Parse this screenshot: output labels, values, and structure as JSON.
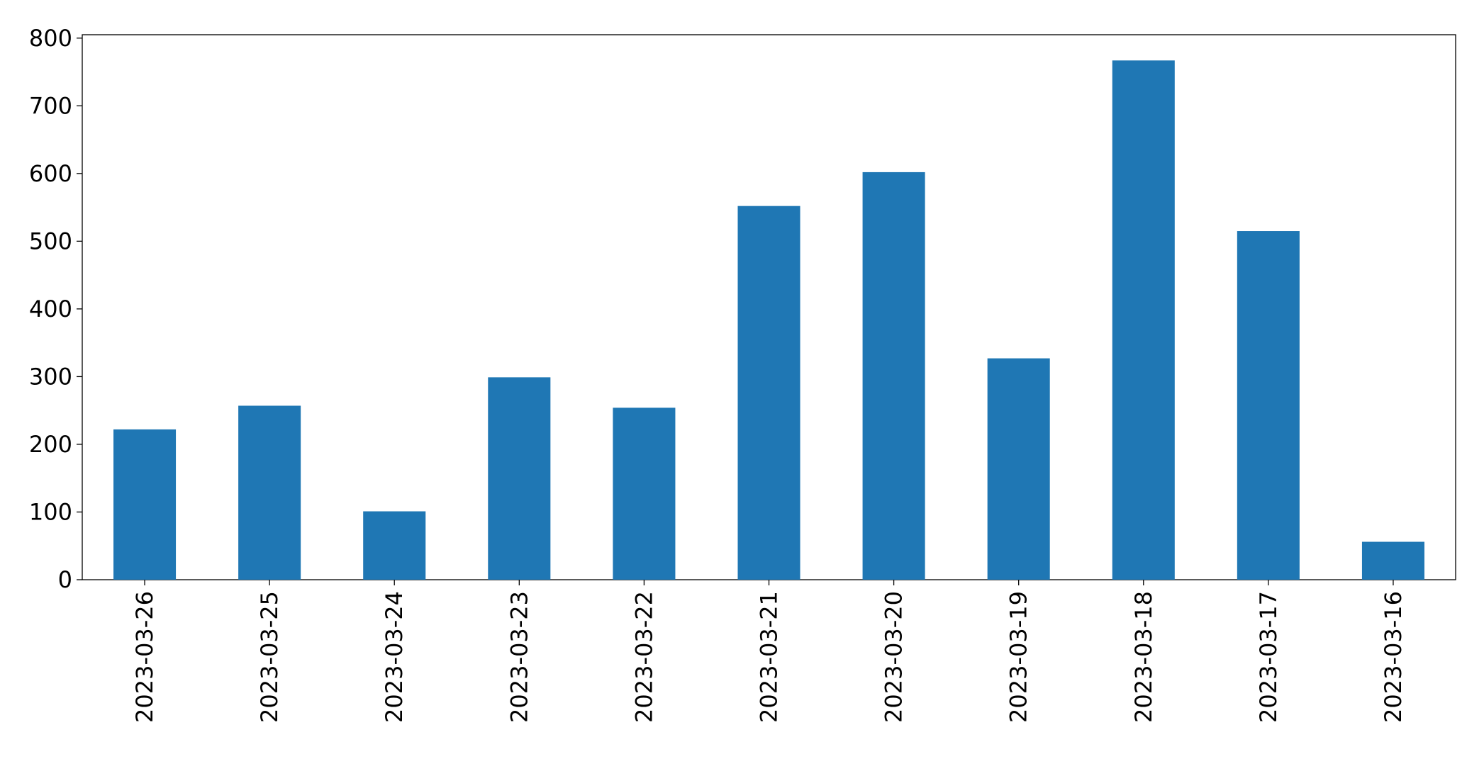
{
  "chart_data": {
    "type": "bar",
    "categories": [
      "2023-03-26",
      "2023-03-25",
      "2023-03-24",
      "2023-03-23",
      "2023-03-22",
      "2023-03-21",
      "2023-03-20",
      "2023-03-19",
      "2023-03-18",
      "2023-03-17",
      "2023-03-16"
    ],
    "values": [
      222,
      257,
      101,
      299,
      254,
      552,
      602,
      327,
      767,
      515,
      56
    ],
    "color": "#1f77b4",
    "ylim": [
      0,
      805
    ],
    "yticks": [
      0,
      100,
      200,
      300,
      400,
      500,
      600,
      700,
      800
    ],
    "grid": false
  }
}
